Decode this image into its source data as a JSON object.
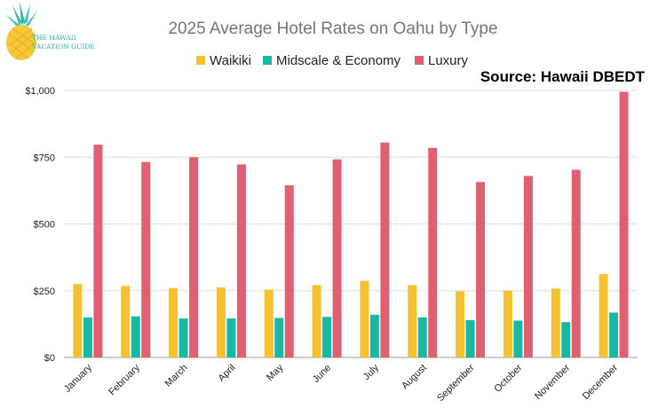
{
  "chart_data": {
    "type": "bar",
    "title": "2025 Average Hotel Rates on Oahu by Type",
    "categories": [
      "January",
      "February",
      "March",
      "April",
      "May",
      "June",
      "July",
      "August",
      "September",
      "October",
      "November",
      "December"
    ],
    "series": [
      {
        "name": "Waikiki",
        "color": "#f4c230",
        "values": [
          275,
          268,
          260,
          262,
          254,
          271,
          287,
          271,
          248,
          250,
          258,
          312
        ]
      },
      {
        "name": "Midscale & Economy",
        "color": "#18b8a5",
        "values": [
          150,
          154,
          146,
          146,
          148,
          152,
          160,
          150,
          140,
          138,
          132,
          168
        ]
      },
      {
        "name": "Luxury",
        "color": "#e0606f",
        "values": [
          797,
          732,
          750,
          723,
          645,
          742,
          805,
          785,
          657,
          680,
          703,
          995
        ]
      }
    ],
    "y_ticks": [
      "$0",
      "$250",
      "$500",
      "$750",
      "$1,000"
    ],
    "y_tick_values": [
      0,
      250,
      500,
      750,
      1000
    ],
    "ylim": [
      0,
      1000
    ],
    "grid": true,
    "legend_position": "top-center",
    "source": "Source: Hawaii DBEDT"
  },
  "logo": {
    "line1": "THE HAWAII",
    "line2": "VACATION GUIDE"
  }
}
